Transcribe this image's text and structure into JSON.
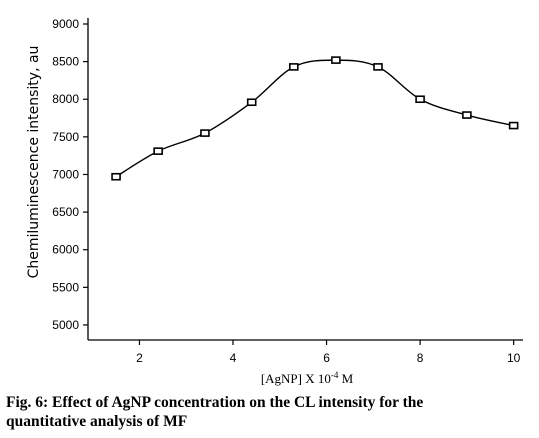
{
  "chart_data": {
    "type": "line",
    "x": [
      1.5,
      2.4,
      3.4,
      4.4,
      5.3,
      6.2,
      7.1,
      8.0,
      9.0,
      10.0
    ],
    "y": [
      6970,
      7310,
      7550,
      7960,
      8430,
      8520,
      8430,
      8000,
      7790,
      7650
    ],
    "xlabel": "[AgNP] X 10",
    "xlabel_exp": "-4",
    "xlabel_unit": " M",
    "ylabel": "Chemiluminescence intensity, au",
    "xlim": [
      0.9,
      10.2
    ],
    "ylim": [
      4800,
      9000
    ],
    "xticks": [
      2,
      4,
      6,
      8,
      10
    ],
    "yticks": [
      5000,
      5500,
      6000,
      6500,
      7000,
      7500,
      8000,
      8500,
      9000
    ],
    "grid": false,
    "marker": "square",
    "line": "smooth"
  },
  "caption": {
    "line1": "Fig. 6: Effect of AgNP concentration on the CL intensity for the",
    "line2": "quantitative analysis of MF"
  },
  "colors": {
    "line": "#000000",
    "marker_fill": "#ffffff",
    "axis": "#000000"
  }
}
